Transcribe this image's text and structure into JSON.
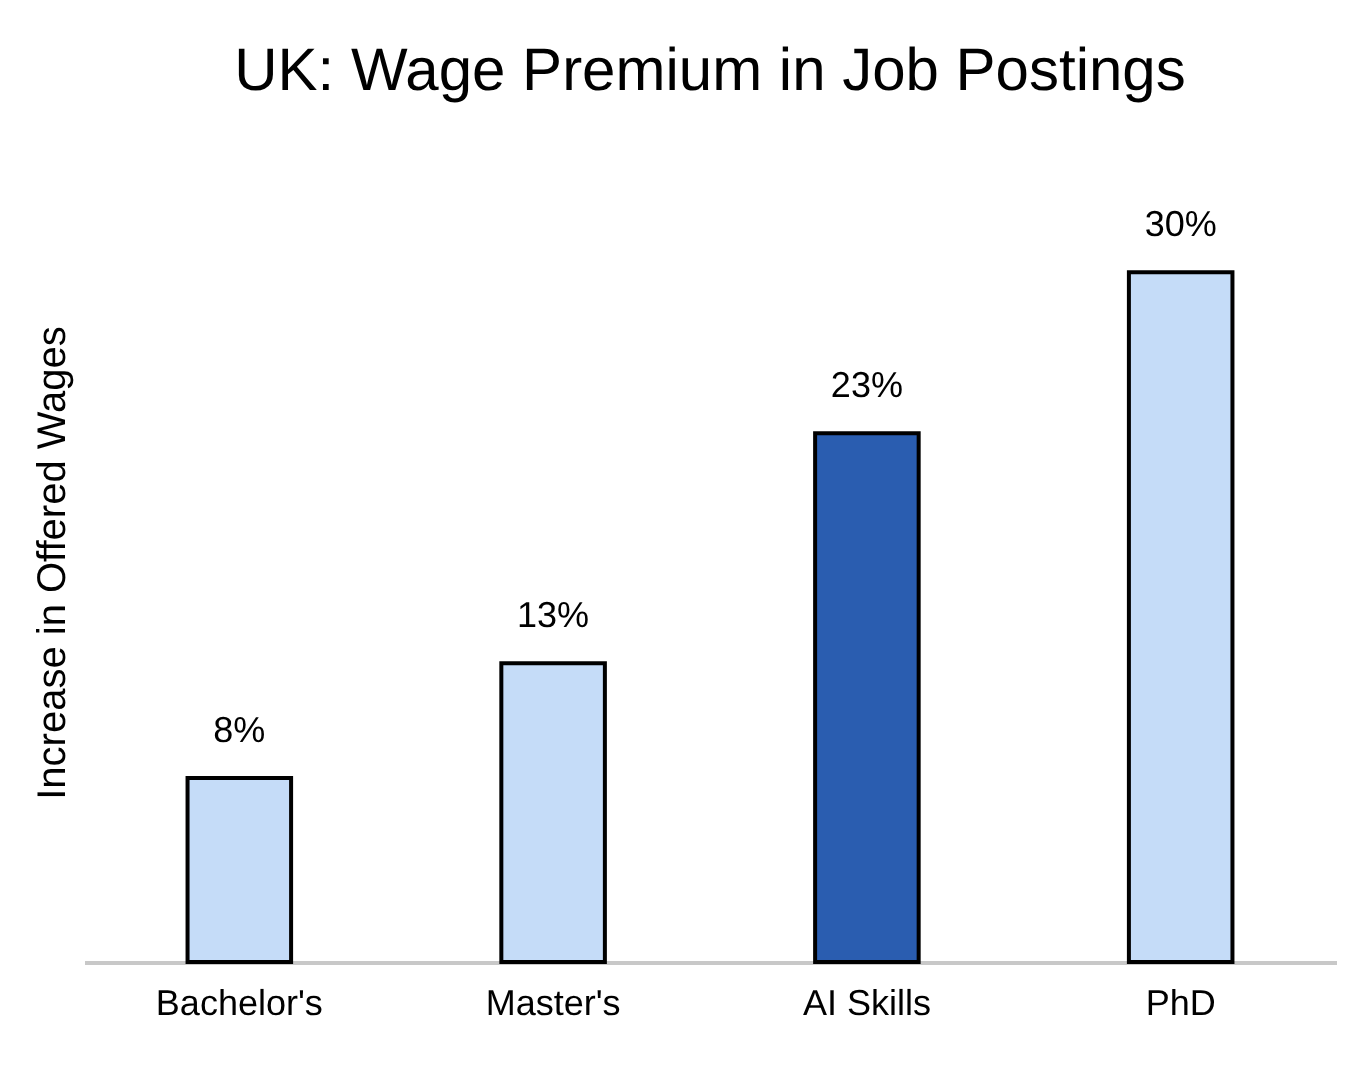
{
  "chart_data": {
    "type": "bar",
    "title": "UK: Wage Premium in Job Postings",
    "ylabel": "Increase in Offered Wages",
    "categories": [
      "Bachelor's",
      "Master's",
      "AI Skills",
      "PhD"
    ],
    "values": [
      8,
      13,
      23,
      30
    ],
    "value_labels": [
      "8%",
      "13%",
      "23%",
      "30%"
    ],
    "colors": [
      "#c5dcf8",
      "#c5dcf8",
      "#2a5db0",
      "#c5dcf8"
    ]
  }
}
